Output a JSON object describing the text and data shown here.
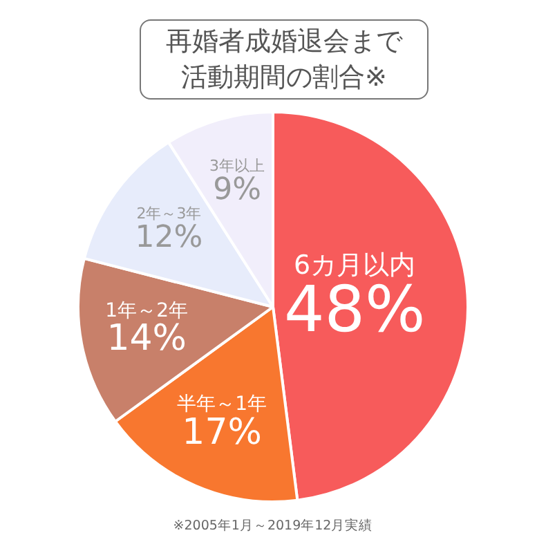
{
  "chart_data": {
    "type": "pie",
    "title": "再婚者成婚退会まで活動期間の割合※",
    "categories": [
      "6カ月以内",
      "半年～1年",
      "1年～2年",
      "2年～3年",
      "3年以上"
    ],
    "values": [
      48,
      17,
      14,
      12,
      9
    ],
    "colors": [
      "#f75b5b",
      "#f8772f",
      "#c8806a",
      "#e7ecfb",
      "#f1eefb"
    ],
    "value_labels": [
      "48%",
      "17%",
      "14%",
      "12%",
      "9%"
    ],
    "annotations": [
      "※2005年1月～2019年12月実績"
    ],
    "legend": false
  }
}
